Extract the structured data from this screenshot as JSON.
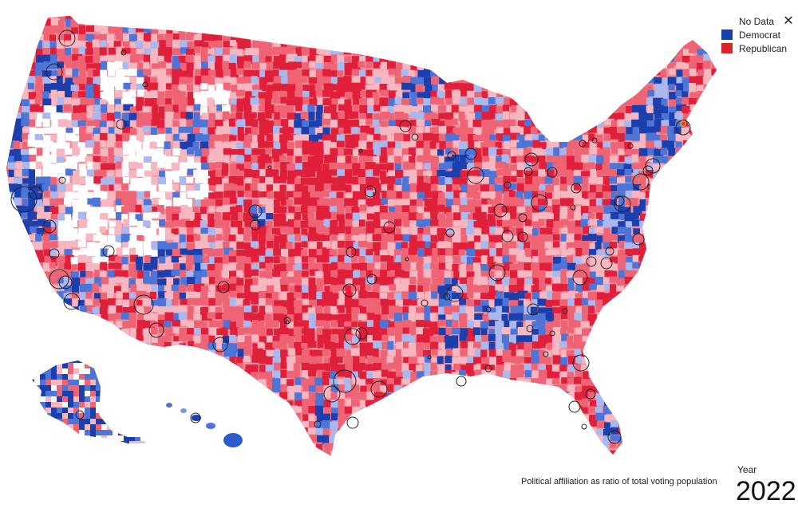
{
  "legend": {
    "items": [
      {
        "label": "No Data",
        "color": ""
      },
      {
        "label": "Democrat",
        "color": "#1440b0"
      },
      {
        "label": "Republican",
        "color": "#d9242a"
      }
    ],
    "close_icon": "close-icon"
  },
  "caption": "Political affiliation as ratio of total voting population",
  "year": {
    "label": "Year",
    "value": "2022"
  },
  "colors": {
    "democrat_strong": "#1c3fae",
    "democrat_mid": "#4d75d8",
    "democrat_light": "#a9b9ef",
    "republican_strong": "#e0203a",
    "republican_mid": "#ef6475",
    "republican_light": "#f7b7c0",
    "no_data": "#ffffff",
    "city_circle": "#222222",
    "highlight": "#f08a24"
  }
}
